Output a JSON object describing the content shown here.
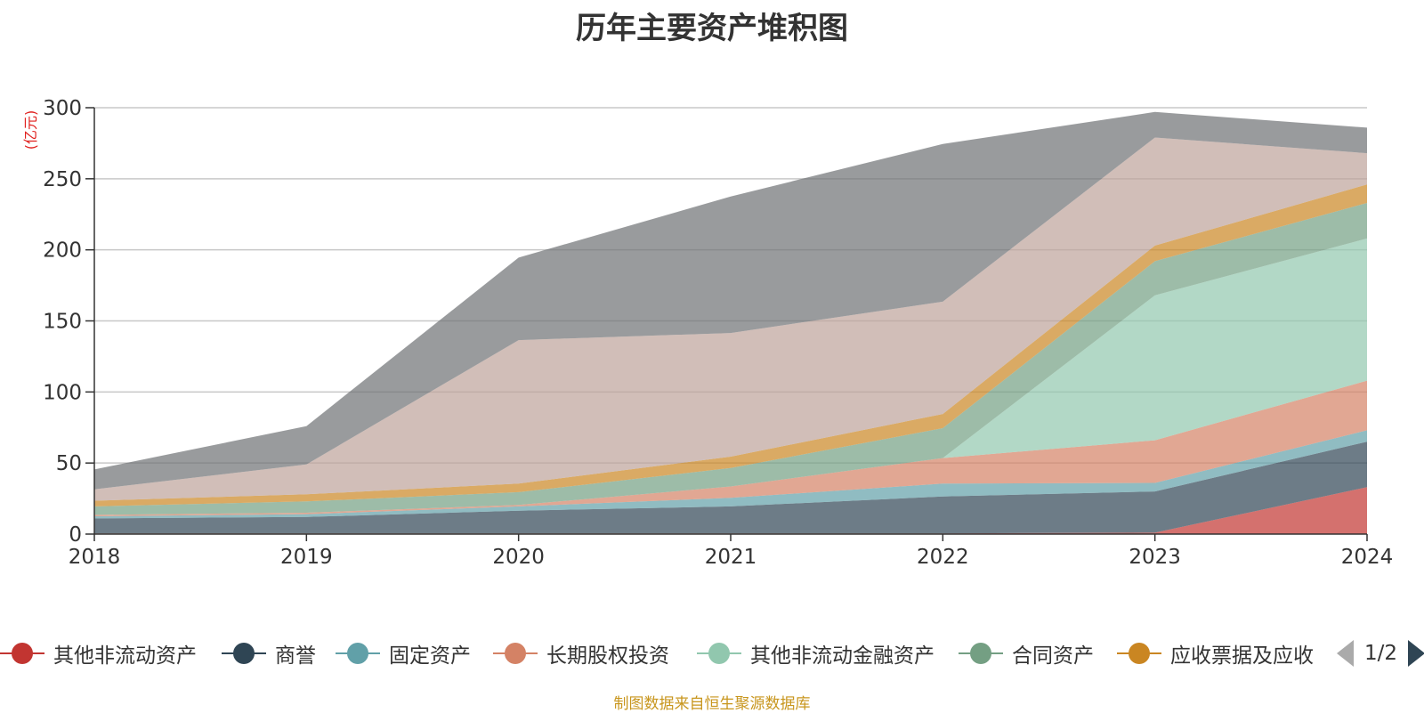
{
  "chart_data": {
    "type": "area",
    "stacked": true,
    "title": "历年主要资产堆积图",
    "unit_label": "(亿元)",
    "x": [
      "2018",
      "2019",
      "2020",
      "2021",
      "2022",
      "2023",
      "2024"
    ],
    "ylim": [
      0,
      300
    ],
    "yticks": [
      "0",
      "50",
      "100",
      "150",
      "200",
      "250",
      "300"
    ],
    "grid": true,
    "legend_position": "bottom",
    "series": [
      {
        "name": "其他非流动资产",
        "color": "#c23531",
        "values": [
          0.5,
          0.5,
          0.5,
          0.5,
          0.5,
          1,
          33
        ]
      },
      {
        "name": "商誉",
        "color": "#2f4554",
        "values": [
          10.5,
          11.5,
          16,
          19,
          26,
          29,
          32
        ]
      },
      {
        "name": "固定资产",
        "color": "#61a0a8",
        "values": [
          1.5,
          2,
          3,
          6,
          9,
          6,
          8
        ]
      },
      {
        "name": "长期股权投资",
        "color": "#d48265",
        "values": [
          1,
          1,
          1,
          8,
          18,
          30,
          35
        ]
      },
      {
        "name": "其他非流动金融资产",
        "color": "#91c7ae",
        "values": [
          0,
          0,
          0,
          0,
          0,
          102,
          100
        ]
      },
      {
        "name": "合同资产",
        "color": "#749f83",
        "values": [
          6,
          8,
          9,
          13,
          21,
          24,
          25
        ]
      },
      {
        "name": "应收票据及应收账款",
        "color": "#ca8622",
        "values": [
          4,
          5,
          6,
          8,
          10,
          11,
          13
        ]
      },
      {
        "name": "",
        "color": "#bda29a",
        "values": [
          8,
          21,
          101,
          87,
          79,
          76,
          22
        ]
      },
      {
        "name": "",
        "color": "#6e7074",
        "values": [
          14,
          27,
          58,
          96,
          111,
          18,
          18
        ]
      }
    ]
  },
  "legend": {
    "visible_items": [
      "其他非流动资产",
      "商誉",
      "固定资产",
      "长期股权投资",
      "其他非流动金融资产",
      "合同资产",
      "应收票据及应收"
    ],
    "page": "1/2"
  },
  "source_note": "制图数据来自恒生聚源数据库"
}
